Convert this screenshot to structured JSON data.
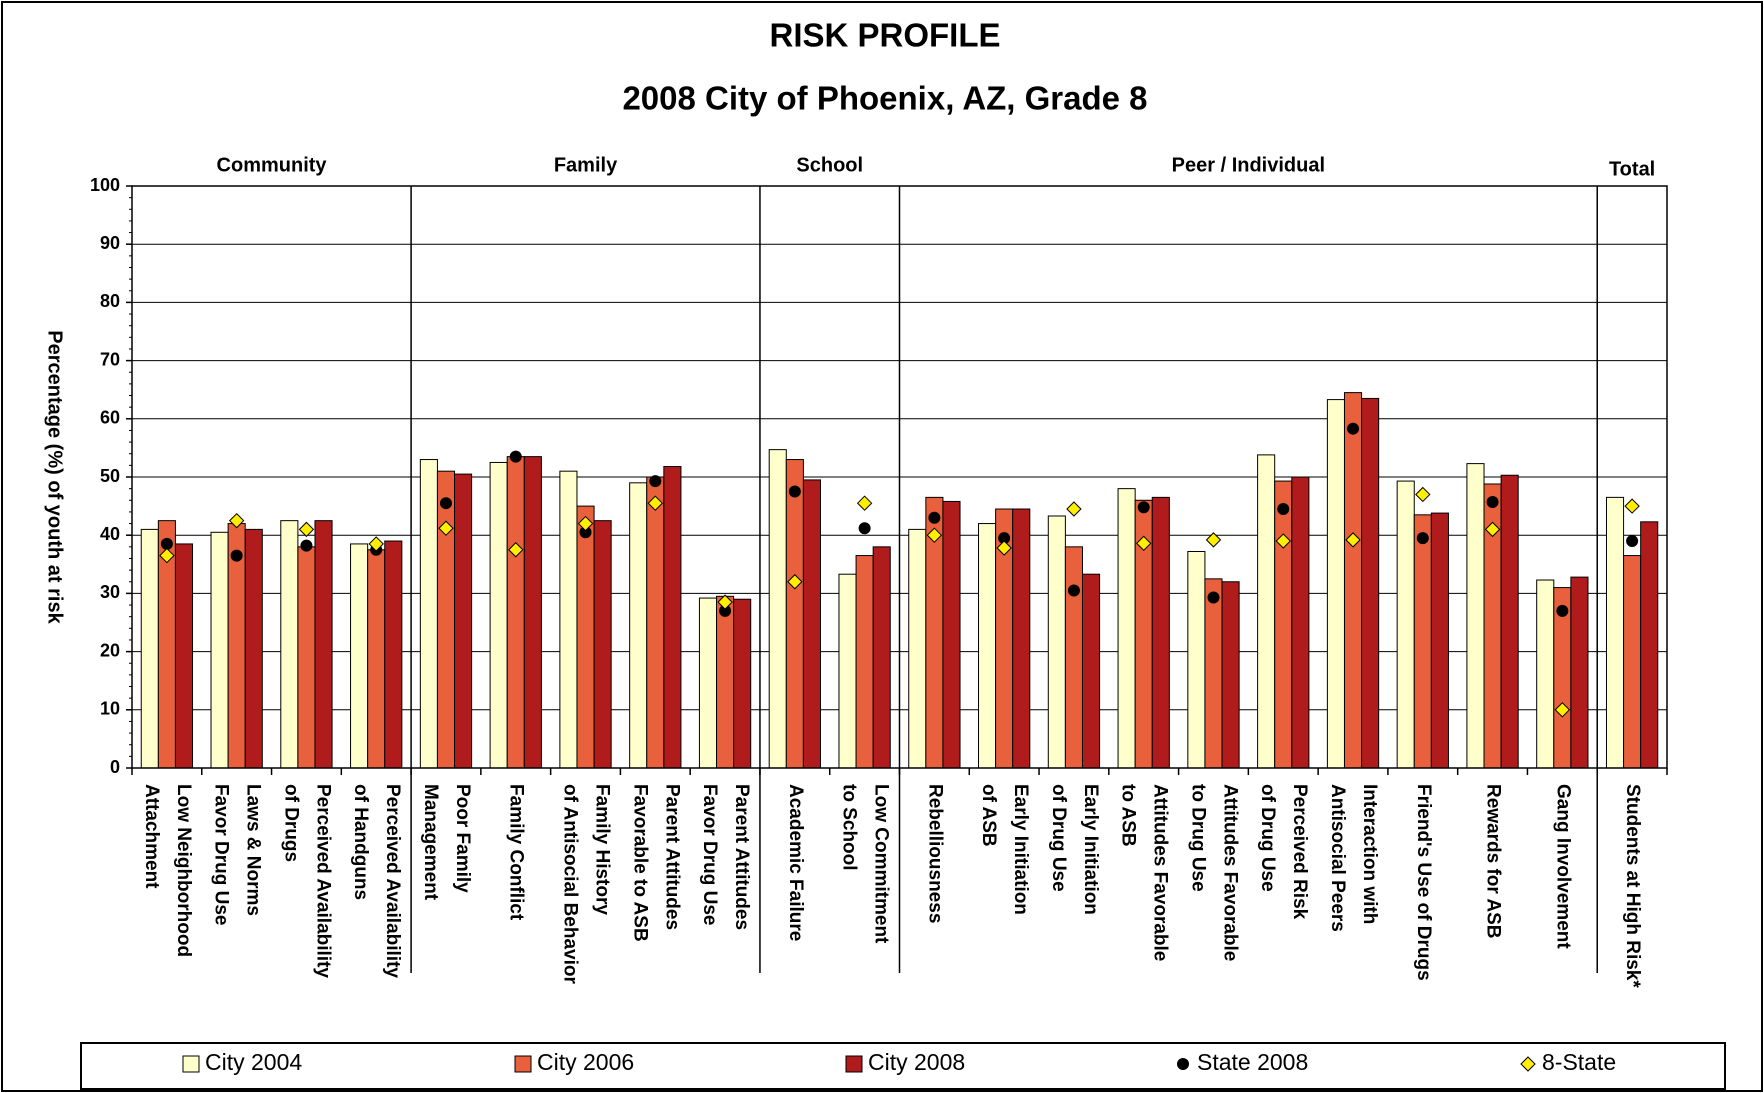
{
  "chart_data": {
    "type": "bar",
    "title": "RISK PROFILE",
    "subtitle": "2008 City of Phoenix, AZ, Grade 8",
    "y_label": "Percentage (%) of youth at risk",
    "groups": [
      {
        "name": "Community",
        "categories": [
          [
            "Low Neighborhood",
            "Attachment"
          ],
          [
            "Laws & Norms",
            "Favor Drug Use"
          ],
          [
            "Perceived Availability",
            "of Drugs"
          ],
          [
            "Perceived Availability",
            "of Handguns"
          ]
        ]
      },
      {
        "name": "Family",
        "categories": [
          [
            "Poor Family",
            "Management"
          ],
          [
            "Family Conflict"
          ],
          [
            "Family History",
            "of Antisocial Behavior"
          ],
          [
            "Parent Attitudes",
            "Favorable to ASB"
          ],
          [
            "Parent Attitudes",
            "Favor Drug Use"
          ]
        ]
      },
      {
        "name": "School",
        "categories": [
          [
            "Academic Failure"
          ],
          [
            "Low Commitment",
            "to School"
          ]
        ]
      },
      {
        "name": "Peer / Individual",
        "categories": [
          [
            "Rebelliousness"
          ],
          [
            "Early Initiation",
            "of ASB"
          ],
          [
            "Early Initiation",
            "of Drug Use"
          ],
          [
            "Attitudes Favorable",
            "to ASB"
          ],
          [
            "Attitudes Favorable",
            "to Drug Use"
          ],
          [
            "Perceived Risk",
            "of Drug Use"
          ],
          [
            "Interaction with",
            "Antisocial Peers"
          ],
          [
            "Friend's Use of Drugs"
          ],
          [
            "Rewards for ASB"
          ],
          [
            "Gang Involvement"
          ]
        ]
      },
      {
        "name": "Total",
        "categories": [
          [
            "Students at High Risk*"
          ]
        ]
      }
    ],
    "series": [
      {
        "name": "City 2004",
        "type": "bar",
        "color": "#ffffcc",
        "values": [
          41,
          40.5,
          42.5,
          38.5,
          53,
          52.5,
          51,
          49,
          29.2,
          54.7,
          33.3,
          41,
          42,
          43.3,
          48,
          37.2,
          53.8,
          63.3,
          49.3,
          52.3,
          32.3,
          46.5
        ]
      },
      {
        "name": "City 2006",
        "type": "bar",
        "color": "#e8603c",
        "values": [
          42.5,
          42,
          38,
          37.5,
          51,
          53.5,
          45,
          50,
          29.5,
          53,
          36.5,
          46.5,
          44.5,
          38,
          46,
          32.5,
          49.3,
          64.5,
          43.5,
          48.8,
          31,
          36.5
        ]
      },
      {
        "name": "City 2008",
        "type": "bar",
        "color": "#b01c1c",
        "values": [
          38.5,
          41,
          42.5,
          39,
          50.5,
          53.5,
          42.5,
          51.8,
          29,
          49.5,
          38,
          45.8,
          44.5,
          33.3,
          46.5,
          32,
          50,
          63.5,
          43.8,
          50.3,
          32.8,
          42.3
        ]
      },
      {
        "name": "State 2008",
        "type": "scatter",
        "marker": "circle",
        "color": "#000000",
        "values": [
          38.5,
          36.5,
          38.2,
          37.5,
          45.5,
          53.5,
          40.5,
          49.3,
          27,
          47.5,
          41.2,
          43,
          39.5,
          30.5,
          44.8,
          29.3,
          44.5,
          58.3,
          39.5,
          45.7,
          27,
          39
        ]
      },
      {
        "name": "8-State",
        "type": "scatter",
        "marker": "diamond",
        "color": "#ffee00",
        "values": [
          36.5,
          42.5,
          41,
          38.5,
          41.2,
          37.5,
          42,
          45.5,
          28.5,
          32,
          45.5,
          40,
          37.8,
          44.5,
          38.6,
          39.2,
          39,
          39.2,
          47,
          41,
          10,
          45
        ]
      }
    ],
    "ylim": [
      0,
      100
    ],
    "yticks": [
      0,
      10,
      20,
      30,
      40,
      50,
      60,
      70,
      80,
      90,
      100
    ],
    "grid": true
  }
}
